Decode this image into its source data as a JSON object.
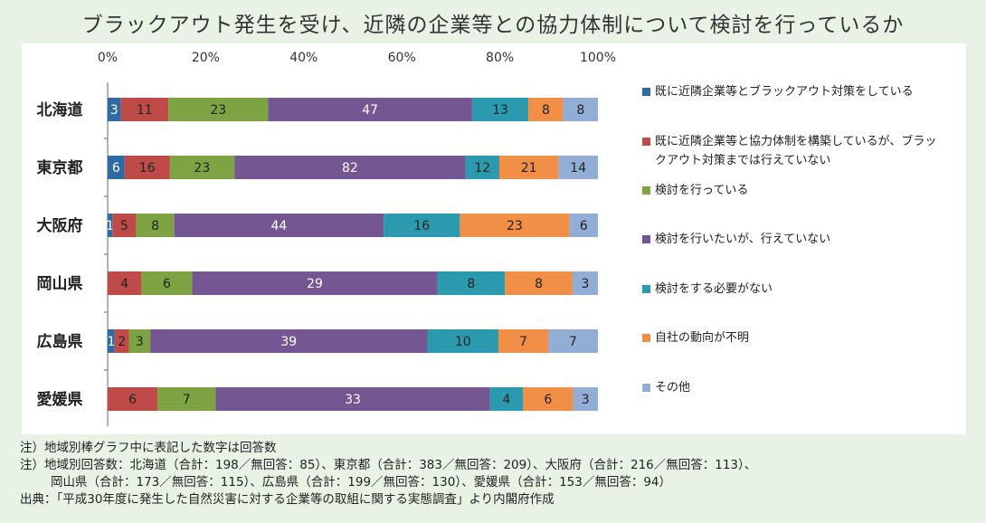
{
  "title": "ブラックアウト発生を受け、近隣の企業等との協力体制について検討を行っているか",
  "notes": {
    "note1": "注）地域別棒グラフ中に表記した数字は回答数",
    "note2a": "注）地域別回答数：北海道（合計：198／無回答：85）、東京都（合計：383／無回答：209）、大阪府（合計：216／無回答：113）、",
    "note2b": "岡山県（合計：173／無回答：115）、広島県（合計：199／無回答：130）、愛媛県（合計：153／無回答：94）",
    "source": "出典：「平成30年度に発生した自然災害に対する企業等の取組に関する実態調査」より内閣府作成"
  },
  "chart_data": {
    "type": "bar",
    "orientation": "horizontal",
    "stacked": "percent",
    "title": "ブラックアウト発生を受け、近隣の企業等との協力体制について検討を行っているか",
    "categories": [
      "北海道",
      "東京都",
      "大阪府",
      "岡山県",
      "広島県",
      "愛媛県"
    ],
    "x_ticks": [
      "0%",
      "20%",
      "40%",
      "60%",
      "80%",
      "100%"
    ],
    "xlim": [
      0,
      100
    ],
    "legend_position": "right",
    "series": [
      {
        "name": "既に近隣企業等とブラックアウト対策をしている",
        "color": "#2e6aa6",
        "values": [
          3,
          6,
          1,
          0,
          1,
          0
        ],
        "labels": [
          "3",
          "6",
          "1",
          "0",
          "1",
          "0"
        ]
      },
      {
        "name": "既に近隣企業等と協力体制を構築しているが、ブラックアウト対策までは行えていない",
        "color": "#be4b48",
        "values": [
          11,
          16,
          5,
          4,
          2,
          6
        ],
        "labels": [
          "11",
          "16",
          "5",
          "4",
          "2",
          "6"
        ]
      },
      {
        "name": "検討を行っている",
        "color": "#7da343",
        "values": [
          23,
          23,
          8,
          6,
          3,
          7
        ],
        "labels": [
          "23",
          "23",
          "8",
          "6",
          "3",
          "7"
        ]
      },
      {
        "name": "検討を行いたいが、行えていない",
        "color": "#735692",
        "values": [
          47,
          82,
          44,
          29,
          39,
          33
        ],
        "labels": [
          "47",
          "82",
          "44",
          "29",
          "39",
          "33"
        ]
      },
      {
        "name": "検討をする必要がない",
        "color": "#2b9aae",
        "values": [
          13,
          12,
          16,
          8,
          10,
          4
        ],
        "labels": [
          "13",
          "12",
          "16",
          "8",
          "10",
          "4"
        ]
      },
      {
        "name": "自社の動向が不明",
        "color": "#f08f45",
        "values": [
          8,
          21,
          23,
          8,
          7,
          6
        ],
        "labels": [
          "8",
          "21",
          "23",
          "8",
          "7",
          "6"
        ]
      },
      {
        "name": "その他",
        "color": "#93aed6",
        "values": [
          8,
          14,
          6,
          3,
          7,
          3
        ],
        "labels": [
          "8",
          "14",
          "6",
          "3",
          "7",
          "3"
        ]
      }
    ]
  }
}
